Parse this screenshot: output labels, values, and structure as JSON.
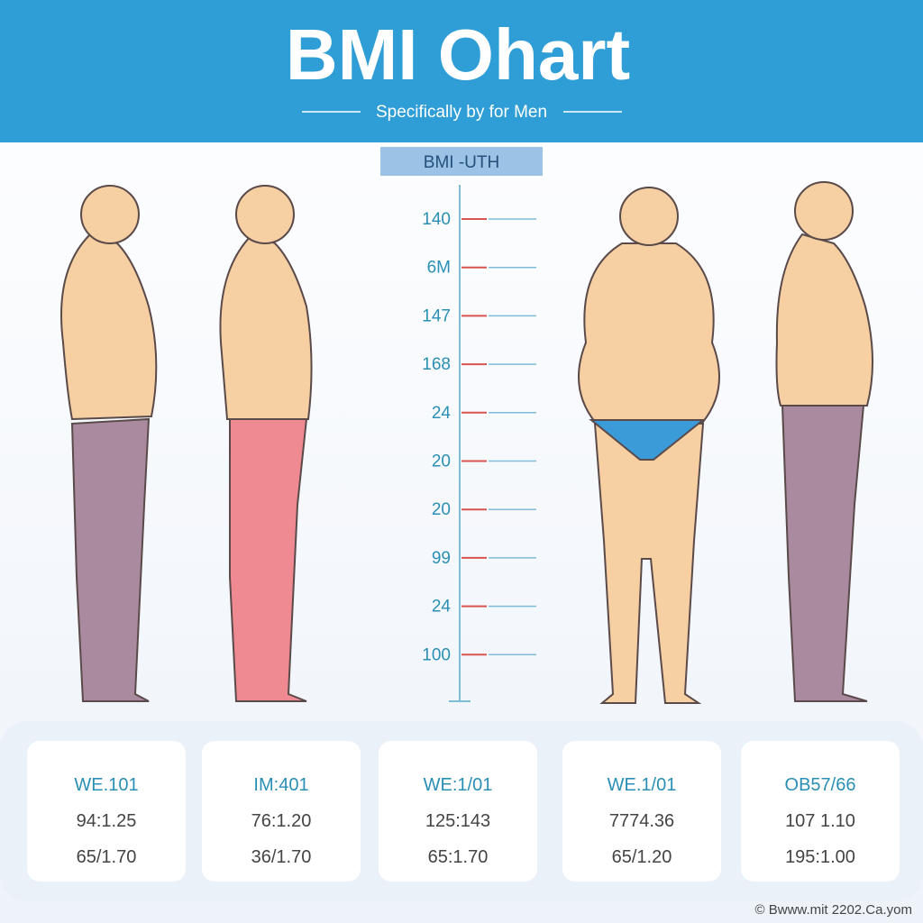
{
  "header": {
    "title": "BMI Ohart",
    "subtitle": "Specifically by for Men"
  },
  "scale": {
    "label": "BMI -UTH",
    "ticks": [
      "140",
      "6M",
      "147",
      "168",
      "24",
      "20",
      "20",
      "99",
      "24",
      "100"
    ]
  },
  "cards": [
    {
      "lines": [
        "WE.101",
        "94:1.25",
        "65/1.70"
      ]
    },
    {
      "lines": [
        "IM:401",
        "76:1.20",
        "36/1.70"
      ]
    },
    {
      "lines": [
        "WE:1/01",
        "125:143",
        "65:1.70"
      ]
    },
    {
      "lines": [
        "WE.1/01",
        "7774.36",
        "65/1.20"
      ]
    },
    {
      "lines": [
        "OB57/66",
        "107 1.10",
        "195:1.00"
      ]
    }
  ],
  "footer": "© Bwww.mit 2202.Ca.yom"
}
